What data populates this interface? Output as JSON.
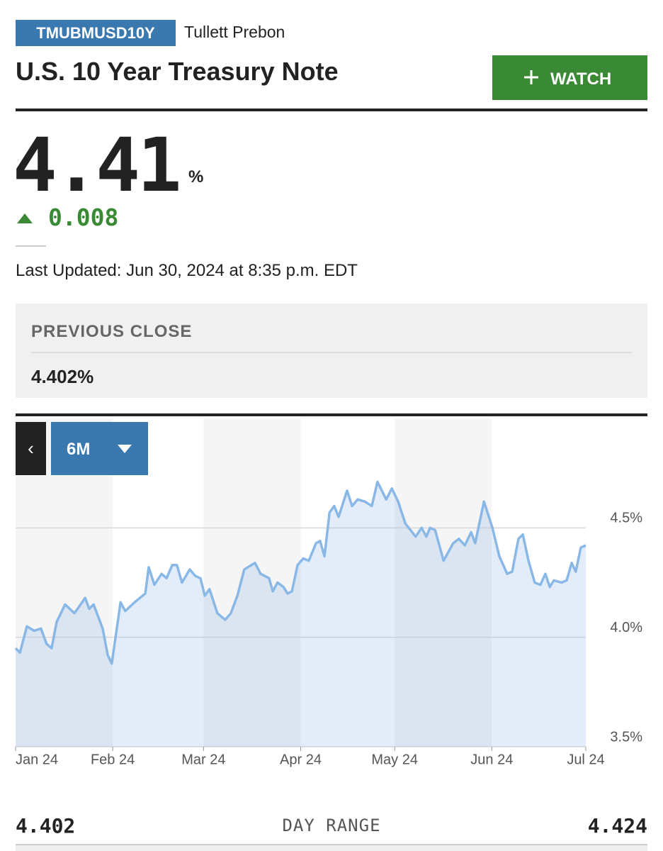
{
  "header": {
    "symbol": "TMUBMUSD10Y",
    "source": "Tullett Prebon",
    "title": "U.S. 10 Year Treasury Note",
    "watch_button": "WATCH"
  },
  "quote": {
    "price": "4.41",
    "unit": "%",
    "change": "0.008",
    "last_updated": "Last Updated: Jun 30, 2024 at 8:35 p.m. EDT"
  },
  "previous_close": {
    "label": "PREVIOUS CLOSE",
    "value": "4.402%"
  },
  "range_selector": "6M",
  "chart_data": {
    "type": "line",
    "color": "#8ab8e6",
    "grid": true,
    "xlim": [
      0,
      182
    ],
    "xticks": [
      {
        "value": 0,
        "label": "Jan 24"
      },
      {
        "value": 31,
        "label": "Feb 24"
      },
      {
        "value": 60,
        "label": "Mar 24"
      },
      {
        "value": 91,
        "label": "Apr 24"
      },
      {
        "value": 121,
        "label": "May 24"
      },
      {
        "value": 152,
        "label": "Jun 24"
      },
      {
        "value": 182,
        "label": "Jul 24"
      }
    ],
    "ylim": [
      3.5,
      5.0
    ],
    "yticks": [
      {
        "value": 3.5,
        "label": "3.5%"
      },
      {
        "value": 4.0,
        "label": "4.0%"
      },
      {
        "value": 4.5,
        "label": "4.5%"
      }
    ],
    "x": [
      0,
      1.4,
      3.6,
      5.9,
      8.1,
      9.9,
      11.5,
      13.1,
      15.8,
      18.8,
      22.2,
      23.5,
      24.9,
      27.8,
      29.4,
      30.7,
      33.5,
      35,
      38,
      41.4,
      42.5,
      44.3,
      46.6,
      48.2,
      50,
      51.5,
      53.1,
      55.6,
      57.4,
      59,
      60.4,
      61.9,
      64.4,
      66.9,
      68.7,
      70.8,
      73,
      76.4,
      78.2,
      80.9,
      82.1,
      83.6,
      85.5,
      86.8,
      88.2,
      90,
      91.8,
      93.6,
      95.9,
      97.2,
      98.6,
      100.2,
      101.7,
      103.1,
      105.8,
      107.4,
      109.2,
      111.5,
      113.7,
      115.5,
      118.3,
      120.1,
      122.1,
      124.4,
      127.7,
      129.6,
      131.1,
      132.3,
      133.9,
      136.6,
      139.7,
      141.5,
      143.4,
      145.4,
      146.7,
      149.5,
      152.2,
      154.4,
      156.9,
      158.5,
      160.5,
      161.9,
      163.7,
      165.7,
      167.5,
      169.1,
      170.5,
      171.8,
      174.3,
      175.9,
      177.5,
      178.8,
      180.4,
      182
    ],
    "values": [
      3.95,
      3.93,
      4.05,
      4.03,
      4.04,
      3.97,
      3.95,
      4.07,
      4.15,
      4.11,
      4.18,
      4.13,
      4.15,
      4.04,
      3.92,
      3.88,
      4.16,
      4.12,
      4.16,
      4.2,
      4.32,
      4.24,
      4.29,
      4.27,
      4.33,
      4.33,
      4.25,
      4.31,
      4.28,
      4.27,
      4.19,
      4.22,
      4.11,
      4.08,
      4.11,
      4.19,
      4.31,
      4.34,
      4.29,
      4.27,
      4.21,
      4.25,
      4.23,
      4.2,
      4.21,
      4.33,
      4.36,
      4.35,
      4.43,
      4.44,
      4.37,
      4.57,
      4.6,
      4.55,
      4.67,
      4.6,
      4.63,
      4.62,
      4.6,
      4.71,
      4.63,
      4.68,
      4.62,
      4.52,
      4.46,
      4.5,
      4.46,
      4.5,
      4.49,
      4.35,
      4.43,
      4.45,
      4.42,
      4.48,
      4.43,
      4.62,
      4.5,
      4.37,
      4.29,
      4.3,
      4.45,
      4.47,
      4.35,
      4.25,
      4.24,
      4.29,
      4.23,
      4.26,
      4.25,
      4.26,
      4.34,
      4.3,
      4.41,
      4.42
    ]
  },
  "day_range": {
    "low": "4.402",
    "label": "DAY RANGE",
    "high": "4.424"
  }
}
